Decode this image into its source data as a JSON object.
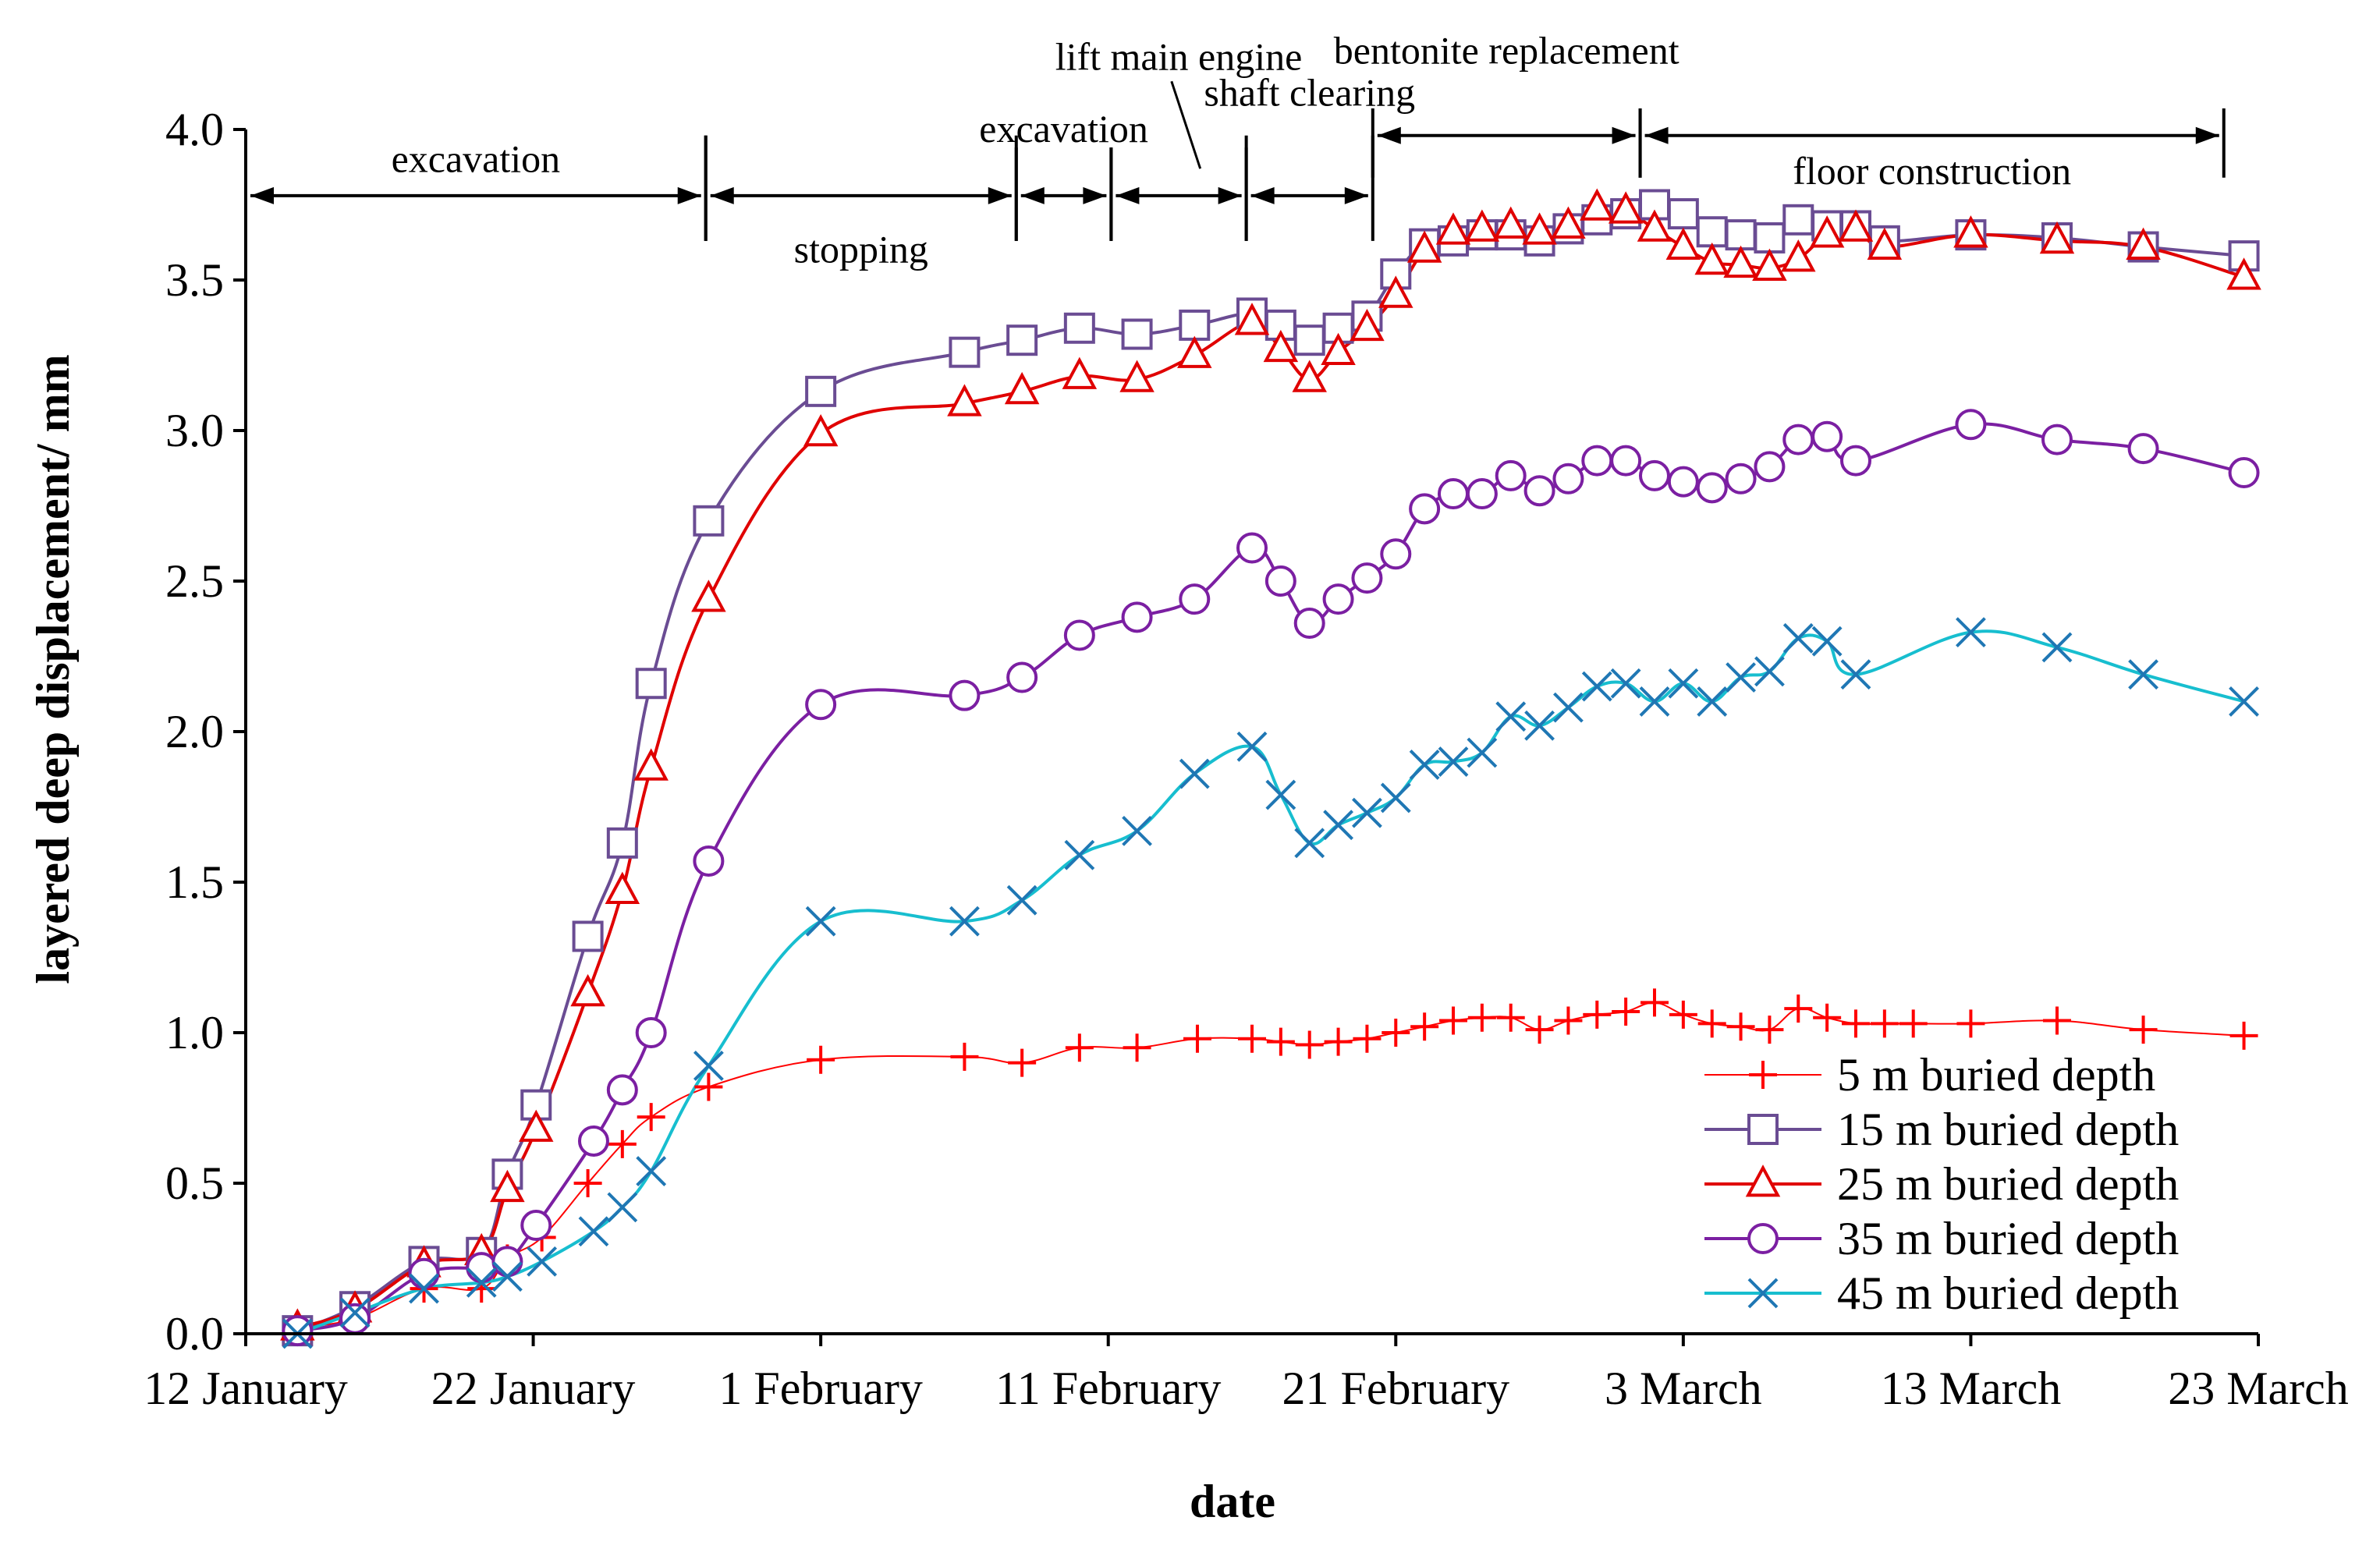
{
  "chart_data": {
    "type": "line",
    "xlabel": "date",
    "ylabel": "layered deep displacement/ mm",
    "x_unit": "days since 12 January",
    "xlim": [
      0,
      70
    ],
    "ylim": [
      0,
      4.0
    ],
    "x_ticks": [
      {
        "day": 0,
        "label": "12 January"
      },
      {
        "day": 10,
        "label": "22 January"
      },
      {
        "day": 20,
        "label": "1 February"
      },
      {
        "day": 30,
        "label": "11 February"
      },
      {
        "day": 40,
        "label": "21 February"
      },
      {
        "day": 50,
        "label": "3 March"
      },
      {
        "day": 60,
        "label": "13 March"
      },
      {
        "day": 70,
        "label": "23 March"
      }
    ],
    "y_ticks": [
      "0.0",
      "0.5",
      "1.0",
      "1.5",
      "2.0",
      "2.5",
      "3.0",
      "3.5",
      "4.0"
    ],
    "y_tick_values": [
      0,
      0.5,
      1.0,
      1.5,
      2.0,
      2.5,
      3.0,
      3.5,
      4.0
    ],
    "legend_position": "bottom-right",
    "series": [
      {
        "name": "5 m buried depth",
        "color": "#ff0000",
        "marker": "plus",
        "line_width": 2,
        "points": [
          [
            1.8,
            0.02
          ],
          [
            3.8,
            0.05
          ],
          [
            6.2,
            0.15
          ],
          [
            8.2,
            0.15
          ],
          [
            9.1,
            0.25
          ],
          [
            10.3,
            0.32
          ],
          [
            11.9,
            0.5
          ],
          [
            13.1,
            0.63
          ],
          [
            14.1,
            0.72
          ],
          [
            16.1,
            0.82
          ],
          [
            20,
            0.91
          ],
          [
            25,
            0.92
          ],
          [
            27,
            0.9
          ],
          [
            29,
            0.95
          ],
          [
            31,
            0.95
          ],
          [
            33.1,
            0.98
          ],
          [
            35,
            0.98
          ],
          [
            36,
            0.97
          ],
          [
            37,
            0.96
          ],
          [
            38,
            0.97
          ],
          [
            39,
            0.98
          ],
          [
            40,
            1.0
          ],
          [
            41,
            1.02
          ],
          [
            42,
            1.04
          ],
          [
            43,
            1.05
          ],
          [
            44,
            1.05
          ],
          [
            45,
            1.01
          ],
          [
            46,
            1.04
          ],
          [
            47,
            1.06
          ],
          [
            48,
            1.07
          ],
          [
            49,
            1.1
          ],
          [
            50,
            1.06
          ],
          [
            51,
            1.03
          ],
          [
            52,
            1.02
          ],
          [
            53,
            1.01
          ],
          [
            54,
            1.08
          ],
          [
            55,
            1.05
          ],
          [
            56,
            1.03
          ],
          [
            57,
            1.03
          ],
          [
            58,
            1.03
          ],
          [
            60,
            1.03
          ],
          [
            63,
            1.04
          ],
          [
            66,
            1.01
          ],
          [
            69.5,
            0.99
          ]
        ]
      },
      {
        "name": "15 m buried depth",
        "color": "#6a4c93",
        "marker": "square",
        "line_width": 4,
        "points": [
          [
            1.8,
            0.01
          ],
          [
            3.8,
            0.09
          ],
          [
            6.2,
            0.24
          ],
          [
            8.2,
            0.27
          ],
          [
            9.1,
            0.53
          ],
          [
            10.1,
            0.76
          ],
          [
            11.9,
            1.32
          ],
          [
            13.1,
            1.63
          ],
          [
            14.1,
            2.16
          ],
          [
            16.1,
            2.7
          ],
          [
            20,
            3.13
          ],
          [
            25,
            3.26
          ],
          [
            27,
            3.3
          ],
          [
            29,
            3.34
          ],
          [
            31,
            3.32
          ],
          [
            33,
            3.35
          ],
          [
            35,
            3.39
          ],
          [
            36,
            3.35
          ],
          [
            37,
            3.3
          ],
          [
            38,
            3.34
          ],
          [
            39,
            3.38
          ],
          [
            40,
            3.52
          ],
          [
            41,
            3.62
          ],
          [
            42,
            3.63
          ],
          [
            43,
            3.65
          ],
          [
            44,
            3.65
          ],
          [
            45,
            3.63
          ],
          [
            46,
            3.67
          ],
          [
            47,
            3.7
          ],
          [
            48,
            3.72
          ],
          [
            49,
            3.75
          ],
          [
            50,
            3.72
          ],
          [
            51,
            3.66
          ],
          [
            52,
            3.65
          ],
          [
            53,
            3.64
          ],
          [
            54,
            3.7
          ],
          [
            55,
            3.68
          ],
          [
            56,
            3.68
          ],
          [
            57,
            3.63
          ],
          [
            60,
            3.65
          ],
          [
            63,
            3.64
          ],
          [
            66,
            3.61
          ],
          [
            69.5,
            3.58
          ]
        ]
      },
      {
        "name": "25 m buried depth",
        "color": "#e00000",
        "marker": "triangle",
        "line_width": 4,
        "points": [
          [
            1.8,
            0.02
          ],
          [
            3.8,
            0.08
          ],
          [
            6.2,
            0.23
          ],
          [
            8.2,
            0.27
          ],
          [
            9.1,
            0.48
          ],
          [
            10.1,
            0.68
          ],
          [
            11.9,
            1.13
          ],
          [
            13.1,
            1.47
          ],
          [
            14.1,
            1.88
          ],
          [
            16.1,
            2.44
          ],
          [
            20,
            2.99
          ],
          [
            25,
            3.09
          ],
          [
            27,
            3.13
          ],
          [
            29,
            3.18
          ],
          [
            31,
            3.17
          ],
          [
            33,
            3.25
          ],
          [
            35,
            3.36
          ],
          [
            36,
            3.27
          ],
          [
            37,
            3.17
          ],
          [
            38,
            3.26
          ],
          [
            39,
            3.34
          ],
          [
            40,
            3.45
          ],
          [
            41,
            3.6
          ],
          [
            42,
            3.66
          ],
          [
            43,
            3.67
          ],
          [
            44,
            3.68
          ],
          [
            45,
            3.66
          ],
          [
            46,
            3.68
          ],
          [
            47,
            3.74
          ],
          [
            48,
            3.73
          ],
          [
            49,
            3.67
          ],
          [
            50,
            3.61
          ],
          [
            51,
            3.56
          ],
          [
            52,
            3.55
          ],
          [
            53,
            3.54
          ],
          [
            54,
            3.57
          ],
          [
            55,
            3.65
          ],
          [
            56,
            3.67
          ],
          [
            57,
            3.61
          ],
          [
            60,
            3.65
          ],
          [
            63,
            3.63
          ],
          [
            66,
            3.61
          ],
          [
            69.5,
            3.51
          ]
        ]
      },
      {
        "name": "35 m buried depth",
        "color": "#7b1fa2",
        "marker": "circle",
        "line_width": 4,
        "points": [
          [
            1.8,
            0.01
          ],
          [
            3.8,
            0.05
          ],
          [
            6.2,
            0.2
          ],
          [
            8.2,
            0.22
          ],
          [
            9.1,
            0.24
          ],
          [
            10.1,
            0.36
          ],
          [
            12.1,
            0.64
          ],
          [
            13.1,
            0.81
          ],
          [
            14.1,
            1.0
          ],
          [
            16.1,
            1.57
          ],
          [
            20,
            2.09
          ],
          [
            25,
            2.12
          ],
          [
            27,
            2.18
          ],
          [
            29,
            2.32
          ],
          [
            31,
            2.38
          ],
          [
            33,
            2.44
          ],
          [
            35,
            2.61
          ],
          [
            36,
            2.5
          ],
          [
            37,
            2.36
          ],
          [
            38,
            2.44
          ],
          [
            39,
            2.51
          ],
          [
            40,
            2.59
          ],
          [
            41,
            2.74
          ],
          [
            42,
            2.79
          ],
          [
            43,
            2.79
          ],
          [
            44,
            2.85
          ],
          [
            45,
            2.8
          ],
          [
            46,
            2.84
          ],
          [
            47,
            2.9
          ],
          [
            48,
            2.9
          ],
          [
            49,
            2.85
          ],
          [
            50,
            2.83
          ],
          [
            51,
            2.81
          ],
          [
            52,
            2.84
          ],
          [
            53,
            2.88
          ],
          [
            54,
            2.97
          ],
          [
            55,
            2.98
          ],
          [
            56,
            2.9
          ],
          [
            60,
            3.02
          ],
          [
            63,
            2.97
          ],
          [
            66,
            2.94
          ],
          [
            69.5,
            2.86
          ]
        ]
      },
      {
        "name": "45 m buried depth",
        "color": "#17becf",
        "marker_color": "#1f77b4",
        "marker": "x",
        "line_width": 4,
        "points": [
          [
            1.8,
            0.0
          ],
          [
            3.8,
            0.07
          ],
          [
            6.2,
            0.15
          ],
          [
            8.2,
            0.17
          ],
          [
            9.1,
            0.19
          ],
          [
            10.3,
            0.24
          ],
          [
            12.1,
            0.34
          ],
          [
            13.1,
            0.42
          ],
          [
            14.1,
            0.54
          ],
          [
            16.1,
            0.89
          ],
          [
            20,
            1.37
          ],
          [
            25,
            1.37
          ],
          [
            27,
            1.44
          ],
          [
            29,
            1.59
          ],
          [
            31,
            1.67
          ],
          [
            33,
            1.86
          ],
          [
            35,
            1.95
          ],
          [
            36,
            1.79
          ],
          [
            37,
            1.63
          ],
          [
            38,
            1.69
          ],
          [
            39,
            1.73
          ],
          [
            40,
            1.78
          ],
          [
            41,
            1.89
          ],
          [
            42,
            1.9
          ],
          [
            43,
            1.93
          ],
          [
            44,
            2.05
          ],
          [
            45,
            2.02
          ],
          [
            46,
            2.08
          ],
          [
            47,
            2.15
          ],
          [
            48,
            2.16
          ],
          [
            49,
            2.1
          ],
          [
            50,
            2.16
          ],
          [
            51,
            2.1
          ],
          [
            52,
            2.18
          ],
          [
            53,
            2.2
          ],
          [
            54,
            2.31
          ],
          [
            55,
            2.3
          ],
          [
            56,
            2.19
          ],
          [
            60,
            2.33
          ],
          [
            63,
            2.28
          ],
          [
            66,
            2.19
          ],
          [
            69.5,
            2.1
          ]
        ]
      }
    ],
    "annotations": [
      {
        "text": "excavation",
        "start": 0,
        "end": 16,
        "arrow_y": 3.78,
        "label_y": 3.9,
        "divider_top": 3.98,
        "divider_bottom": 3.63
      },
      {
        "text": "stopping",
        "start": 16,
        "end": 26.8,
        "arrow_y": 3.78,
        "label_y": 3.6,
        "divider_top": 3.98,
        "divider_bottom": 3.63
      },
      {
        "text": "excavation",
        "start": 26.8,
        "end": 30.1,
        "arrow_y": 3.78,
        "label_y": 4.0,
        "divider_top": 3.94,
        "divider_bottom": 3.63
      },
      {
        "text": "lift main engine",
        "start": 30.1,
        "end": 34.8,
        "arrow_y": 3.78,
        "label_y": 4.24,
        "divider_top": 3.94,
        "divider_bottom": 3.63
      },
      {
        "text": "shaft clearing",
        "start": 34.8,
        "end": 39.2,
        "arrow_y": 3.78,
        "label_y": 4.12,
        "divider_top": 3.98,
        "divider_bottom": 3.63
      },
      {
        "text": "bentonite replacement",
        "start": 39.2,
        "end": 48.5,
        "arrow_y": 3.98,
        "label_y": 4.26,
        "divider_top": 4.07,
        "divider_bottom": 3.84
      },
      {
        "text": "floor construction",
        "start": 48.5,
        "end": 68.8,
        "arrow_y": 3.98,
        "label_y": 3.86,
        "divider_top": 4.07,
        "divider_bottom": 3.84
      }
    ]
  }
}
